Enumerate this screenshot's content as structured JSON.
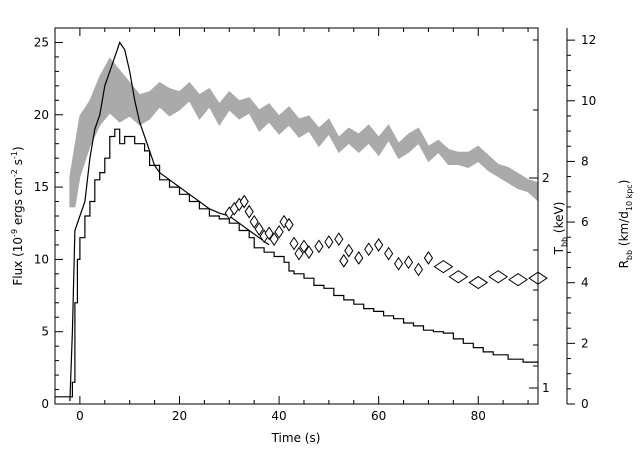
{
  "chart_data": {
    "type": "line",
    "xlabel": "Time (s)",
    "ylabel_left": {
      "main": "Flux (10",
      "sup1": "-9",
      "mid": " ergs cm",
      "sup2": "-2",
      "mid2": " s",
      "sup3": "-1",
      "end": ")"
    },
    "ylabel_temp": {
      "main": "T",
      "sub": "bb",
      "end": " (keV)"
    },
    "ylabel_radius": {
      "main": "R",
      "sub": "bb",
      "mid": " (km/d",
      "sub2": "10 kpc",
      "end": ")"
    },
    "xlim": [
      -5,
      92
    ],
    "ylim_flux": [
      0,
      26
    ],
    "ylim_radius": [
      0,
      12.4
    ],
    "x_ticks": [
      0,
      20,
      40,
      60,
      80
    ],
    "y_ticks_flux": [
      0,
      5,
      10,
      15,
      20,
      25
    ],
    "y_ticks_radius": [
      0,
      2,
      4,
      6,
      8,
      10,
      12
    ],
    "temp_tick_labels": [
      {
        "value": 2,
        "label": "2"
      },
      {
        "value": 1,
        "label": "1"
      }
    ],
    "flux_series": [
      {
        "x": -5,
        "y": 0.5
      },
      {
        "x": -2,
        "y": 0.5
      },
      {
        "x": -1.5,
        "y": 1.5
      },
      {
        "x": -1,
        "y": 7
      },
      {
        "x": -0.5,
        "y": 10
      },
      {
        "x": 0,
        "y": 11.5
      },
      {
        "x": 1,
        "y": 13
      },
      {
        "x": 2,
        "y": 14
      },
      {
        "x": 3,
        "y": 15.5
      },
      {
        "x": 4,
        "y": 16
      },
      {
        "x": 5,
        "y": 17
      },
      {
        "x": 6,
        "y": 18.5
      },
      {
        "x": 7,
        "y": 19
      },
      {
        "x": 8,
        "y": 18
      },
      {
        "x": 9,
        "y": 18.5
      },
      {
        "x": 10,
        "y": 18.5
      },
      {
        "x": 11,
        "y": 18
      },
      {
        "x": 12,
        "y": 18
      },
      {
        "x": 13,
        "y": 17.5
      },
      {
        "x": 14,
        "y": 16.5
      },
      {
        "x": 16,
        "y": 15.5
      },
      {
        "x": 18,
        "y": 15
      },
      {
        "x": 20,
        "y": 14.5
      },
      {
        "x": 22,
        "y": 14
      },
      {
        "x": 24,
        "y": 13.5
      },
      {
        "x": 26,
        "y": 13
      },
      {
        "x": 28,
        "y": 12.8
      },
      {
        "x": 30,
        "y": 12.5
      },
      {
        "x": 32,
        "y": 12
      },
      {
        "x": 34,
        "y": 11.5
      },
      {
        "x": 35,
        "y": 10.8
      },
      {
        "x": 37,
        "y": 10.5
      },
      {
        "x": 39,
        "y": 10.2
      },
      {
        "x": 41,
        "y": 9.8
      },
      {
        "x": 42,
        "y": 9.2
      },
      {
        "x": 43,
        "y": 9
      },
      {
        "x": 45,
        "y": 8.7
      },
      {
        "x": 47,
        "y": 8.2
      },
      {
        "x": 49,
        "y": 8
      },
      {
        "x": 51,
        "y": 7.5
      },
      {
        "x": 53,
        "y": 7.2
      },
      {
        "x": 55,
        "y": 6.9
      },
      {
        "x": 57,
        "y": 6.6
      },
      {
        "x": 59,
        "y": 6.4
      },
      {
        "x": 61,
        "y": 6.1
      },
      {
        "x": 63,
        "y": 5.9
      },
      {
        "x": 65,
        "y": 5.6
      },
      {
        "x": 67,
        "y": 5.4
      },
      {
        "x": 69,
        "y": 5.1
      },
      {
        "x": 71,
        "y": 5
      },
      {
        "x": 73,
        "y": 4.9
      },
      {
        "x": 75,
        "y": 4.5
      },
      {
        "x": 77,
        "y": 4.2
      },
      {
        "x": 79,
        "y": 3.9
      },
      {
        "x": 81,
        "y": 3.6
      },
      {
        "x": 83,
        "y": 3.4
      },
      {
        "x": 86,
        "y": 3.1
      },
      {
        "x": 89,
        "y": 2.9
      },
      {
        "x": 92,
        "y": 2.8
      }
    ],
    "flux_peak_series": [
      {
        "x": -2,
        "y": 0.2
      },
      {
        "x": -1.5,
        "y": 5
      },
      {
        "x": -1,
        "y": 12
      },
      {
        "x": 0,
        "y": 13
      },
      {
        "x": 1,
        "y": 14
      },
      {
        "x": 2,
        "y": 17
      },
      {
        "x": 3,
        "y": 19
      },
      {
        "x": 4,
        "y": 20
      },
      {
        "x": 5,
        "y": 22
      },
      {
        "x": 6,
        "y": 23
      },
      {
        "x": 7,
        "y": 24
      },
      {
        "x": 8,
        "y": 25
      },
      {
        "x": 9,
        "y": 24.5
      },
      {
        "x": 10,
        "y": 23
      },
      {
        "x": 11,
        "y": 21
      },
      {
        "x": 12,
        "y": 19.5
      },
      {
        "x": 13,
        "y": 18.5
      },
      {
        "x": 14,
        "y": 17.5
      },
      {
        "x": 15,
        "y": 16.5
      },
      {
        "x": 16,
        "y": 16
      },
      {
        "x": 18,
        "y": 15.5
      },
      {
        "x": 20,
        "y": 15
      },
      {
        "x": 22,
        "y": 14.5
      },
      {
        "x": 24,
        "y": 14
      },
      {
        "x": 26,
        "y": 13.5
      },
      {
        "x": 28,
        "y": 13.2
      },
      {
        "x": 30,
        "y": 13
      },
      {
        "x": 32,
        "y": 12.5
      },
      {
        "x": 34,
        "y": 12
      },
      {
        "x": 36,
        "y": 11.5
      },
      {
        "x": 38,
        "y": 11
      }
    ],
    "temperature_points": [
      {
        "x": 30,
        "y": 13.2
      },
      {
        "x": 31,
        "y": 13.5
      },
      {
        "x": 32,
        "y": 13.8
      },
      {
        "x": 33,
        "y": 14
      },
      {
        "x": 34,
        "y": 13.3
      },
      {
        "x": 35,
        "y": 12.6
      },
      {
        "x": 36,
        "y": 12.1
      },
      {
        "x": 37,
        "y": 11.6
      },
      {
        "x": 38,
        "y": 11.8
      },
      {
        "x": 39,
        "y": 11.4
      },
      {
        "x": 40,
        "y": 11.9
      },
      {
        "x": 41,
        "y": 12.6
      },
      {
        "x": 42,
        "y": 12.4
      },
      {
        "x": 43,
        "y": 11.1
      },
      {
        "x": 44,
        "y": 10.4
      },
      {
        "x": 45,
        "y": 10.9
      },
      {
        "x": 46,
        "y": 10.5
      },
      {
        "x": 48,
        "y": 10.9
      },
      {
        "x": 50,
        "y": 11.2
      },
      {
        "x": 52,
        "y": 11.4
      },
      {
        "x": 53,
        "y": 9.9
      },
      {
        "x": 54,
        "y": 10.6
      },
      {
        "x": 56,
        "y": 10.1
      },
      {
        "x": 58,
        "y": 10.7
      },
      {
        "x": 60,
        "y": 11
      },
      {
        "x": 62,
        "y": 10.4
      },
      {
        "x": 64,
        "y": 9.7
      },
      {
        "x": 66,
        "y": 9.8
      },
      {
        "x": 68,
        "y": 9.3
      },
      {
        "x": 70,
        "y": 10.1
      },
      {
        "x": 73,
        "y": 9.5
      },
      {
        "x": 76,
        "y": 8.8
      },
      {
        "x": 80,
        "y": 8.4
      },
      {
        "x": 84,
        "y": 8.8
      },
      {
        "x": 88,
        "y": 8.6
      },
      {
        "x": 92,
        "y": 8.7
      }
    ],
    "radius_band": [
      {
        "x": -2,
        "lo": 6.5,
        "hi": 7.5
      },
      {
        "x": -1,
        "lo": 6.5,
        "hi": 8.5
      },
      {
        "x": 0,
        "lo": 7.5,
        "hi": 9.5
      },
      {
        "x": 2,
        "lo": 8.5,
        "hi": 10
      },
      {
        "x": 4,
        "lo": 9.2,
        "hi": 10.8
      },
      {
        "x": 6,
        "lo": 9.6,
        "hi": 11.4
      },
      {
        "x": 8,
        "lo": 9.3,
        "hi": 11
      },
      {
        "x": 10,
        "lo": 9.5,
        "hi": 10.6
      },
      {
        "x": 12,
        "lo": 9.2,
        "hi": 10.2
      },
      {
        "x": 14,
        "lo": 9.4,
        "hi": 10.3
      },
      {
        "x": 16,
        "lo": 9.8,
        "hi": 10.6
      },
      {
        "x": 18,
        "lo": 9.5,
        "hi": 10.4
      },
      {
        "x": 20,
        "lo": 9.7,
        "hi": 10.3
      },
      {
        "x": 22,
        "lo": 10,
        "hi": 10.6
      },
      {
        "x": 24,
        "lo": 9.4,
        "hi": 10.2
      },
      {
        "x": 26,
        "lo": 9.8,
        "hi": 10.4
      },
      {
        "x": 28,
        "lo": 9.2,
        "hi": 9.9
      },
      {
        "x": 30,
        "lo": 9.7,
        "hi": 10.3
      },
      {
        "x": 32,
        "lo": 9.4,
        "hi": 10
      },
      {
        "x": 34,
        "lo": 9.6,
        "hi": 10.1
      },
      {
        "x": 36,
        "lo": 9,
        "hi": 9.7
      },
      {
        "x": 38,
        "lo": 9.3,
        "hi": 9.9
      },
      {
        "x": 40,
        "lo": 8.9,
        "hi": 9.5
      },
      {
        "x": 42,
        "lo": 9.2,
        "hi": 9.8
      },
      {
        "x": 44,
        "lo": 8.8,
        "hi": 9.4
      },
      {
        "x": 46,
        "lo": 9,
        "hi": 9.5
      },
      {
        "x": 48,
        "lo": 8.5,
        "hi": 9.1
      },
      {
        "x": 50,
        "lo": 8.9,
        "hi": 9.4
      },
      {
        "x": 52,
        "lo": 8.3,
        "hi": 8.8
      },
      {
        "x": 54,
        "lo": 8.6,
        "hi": 9.1
      },
      {
        "x": 56,
        "lo": 8.3,
        "hi": 8.9
      },
      {
        "x": 58,
        "lo": 8.6,
        "hi": 9.2
      },
      {
        "x": 60,
        "lo": 8.2,
        "hi": 8.8
      },
      {
        "x": 62,
        "lo": 8.7,
        "hi": 9.2
      },
      {
        "x": 64,
        "lo": 8.1,
        "hi": 8.6
      },
      {
        "x": 66,
        "lo": 8.3,
        "hi": 8.9
      },
      {
        "x": 68,
        "lo": 8.6,
        "hi": 9.1
      },
      {
        "x": 70,
        "lo": 8,
        "hi": 8.5
      },
      {
        "x": 72,
        "lo": 8.3,
        "hi": 8.7
      },
      {
        "x": 74,
        "lo": 7.9,
        "hi": 8.4
      },
      {
        "x": 76,
        "lo": 7.9,
        "hi": 8.3
      },
      {
        "x": 78,
        "lo": 7.8,
        "hi": 8.3
      },
      {
        "x": 80,
        "lo": 8,
        "hi": 8.5
      },
      {
        "x": 82,
        "lo": 7.7,
        "hi": 8.2
      },
      {
        "x": 84,
        "lo": 7.5,
        "hi": 7.9
      },
      {
        "x": 86,
        "lo": 7.3,
        "hi": 7.8
      },
      {
        "x": 88,
        "lo": 7.1,
        "hi": 7.6
      },
      {
        "x": 90,
        "lo": 7,
        "hi": 7.4
      },
      {
        "x": 92,
        "lo": 6.7,
        "hi": 7.3
      }
    ],
    "colors": {
      "flux": "#000000",
      "band": "#aaaaaa",
      "points": "#000000",
      "axis": "#000000"
    },
    "grid": false
  }
}
